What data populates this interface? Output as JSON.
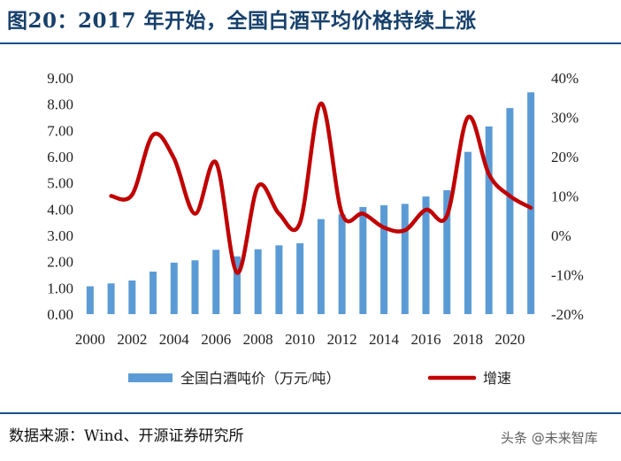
{
  "header": {
    "title": "图20：2017 年开始，全国白酒平均价格持续上涨"
  },
  "footer": {
    "source": "数据来源：Wind、开源证券研究所",
    "watermark": "头条 @未来智库"
  },
  "colors": {
    "bar": "#5b9bd5",
    "line": "#c00000",
    "title": "#17406b"
  },
  "chart_data": {
    "type": "bar+line",
    "title": "",
    "categories": [
      "2000",
      "2001",
      "2002",
      "2003",
      "2004",
      "2005",
      "2006",
      "2007",
      "2008",
      "2009",
      "2010",
      "2011",
      "2012",
      "2013",
      "2014",
      "2015",
      "2016",
      "2017",
      "2018",
      "2019",
      "2020",
      "2021"
    ],
    "x_tick_labels": [
      "2000",
      "2002",
      "2004",
      "2006",
      "2008",
      "2010",
      "2012",
      "2014",
      "2016",
      "2018",
      "2020"
    ],
    "series": [
      {
        "name": "全国白酒吨价（万元/吨）",
        "type": "bar",
        "axis": "left",
        "values": [
          1.06,
          1.17,
          1.28,
          1.62,
          1.96,
          2.05,
          2.45,
          2.2,
          2.47,
          2.62,
          2.7,
          3.62,
          3.8,
          4.08,
          4.15,
          4.2,
          4.48,
          4.72,
          6.18,
          7.15,
          7.85,
          8.45
        ]
      },
      {
        "name": "增速",
        "type": "line",
        "axis": "right",
        "smooth": true,
        "values": [
          null,
          10.0,
          10.3,
          25.5,
          19.5,
          5.5,
          18.5,
          -9.5,
          12.5,
          5.5,
          3.2,
          33.5,
          5.5,
          5.5,
          2.0,
          1.3,
          6.5,
          5.0,
          30.0,
          15.5,
          10.0,
          7.0
        ]
      }
    ],
    "y_left": {
      "min": 0,
      "max": 9,
      "ticks": [
        "0.00",
        "1.00",
        "2.00",
        "3.00",
        "4.00",
        "5.00",
        "6.00",
        "7.00",
        "8.00",
        "9.00"
      ]
    },
    "y_right": {
      "min": -20,
      "max": 40,
      "ticks": [
        "-20%",
        "-10%",
        "0%",
        "10%",
        "20%",
        "30%",
        "40%"
      ]
    },
    "legend": {
      "position": "bottom",
      "items": [
        {
          "label": "全国白酒吨价（万元/吨）",
          "kind": "bar"
        },
        {
          "label": "增速",
          "kind": "line"
        }
      ]
    }
  }
}
